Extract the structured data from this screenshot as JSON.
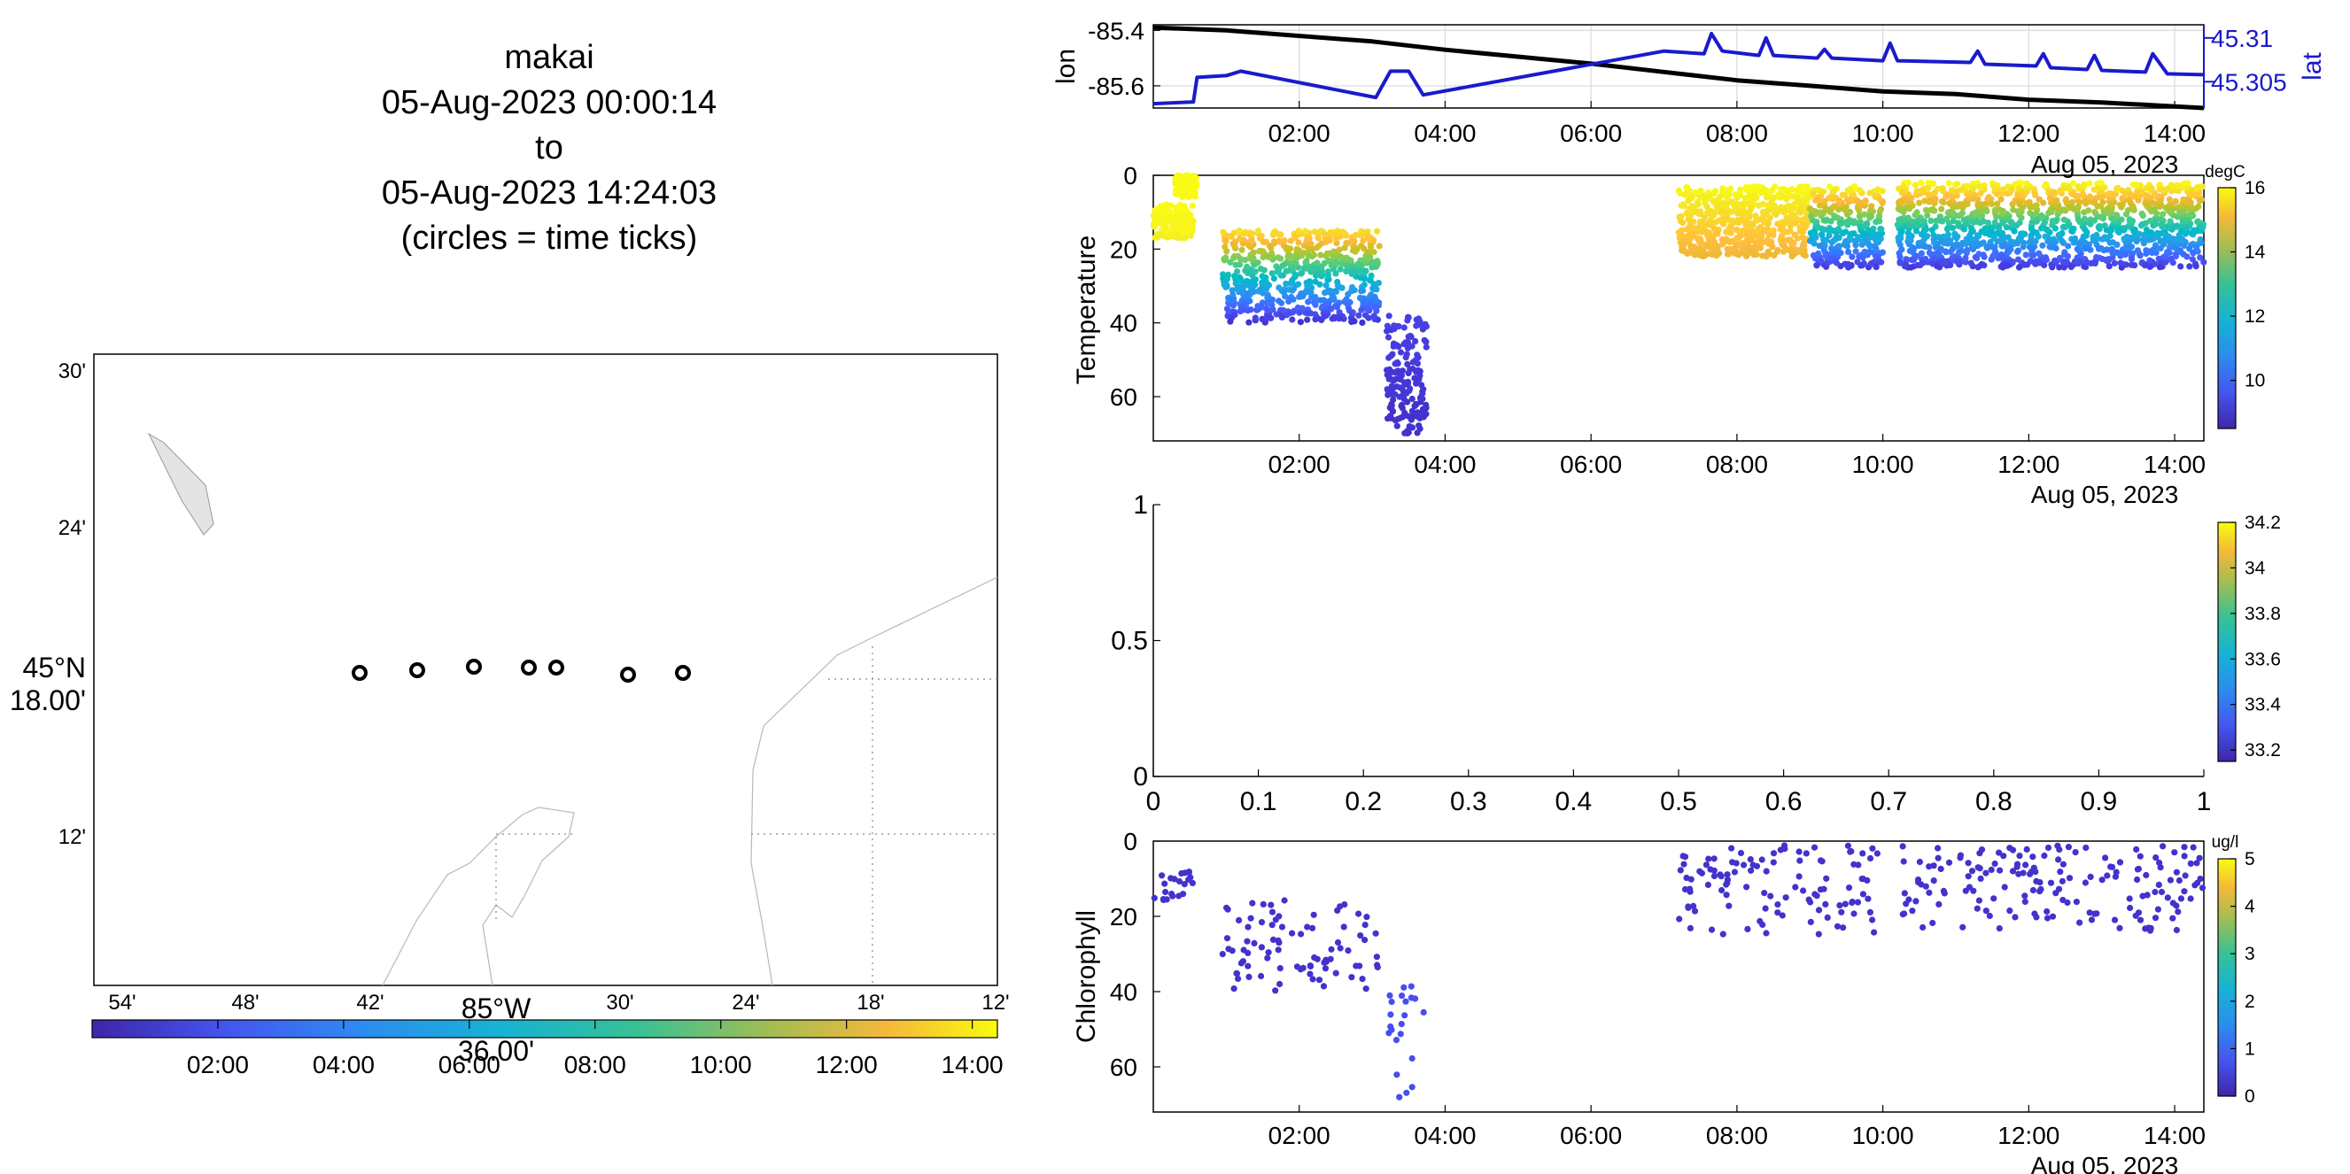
{
  "map": {
    "title_lines": [
      "makai",
      "05-Aug-2023 00:00:14",
      "to",
      "05-Aug-2023 14:24:03",
      "(circles = time ticks)"
    ],
    "lat_ticks": [
      "30'",
      "24'",
      "12'"
    ],
    "lat_center_label": [
      "45°N",
      "18.00'"
    ],
    "lon_ticks": [
      "54'",
      "48'",
      "42'",
      "30'",
      "24'",
      "18'",
      "12'"
    ],
    "lon_center_label": [
      "85°W",
      "36.00'"
    ],
    "time_colorbar_ticks": [
      "02:00",
      "04:00",
      "06:00",
      "08:00",
      "10:00",
      "12:00",
      "14:00"
    ]
  },
  "chart_data": [
    {
      "type": "line",
      "title": "",
      "xlabel": "",
      "ylabel": "lon",
      "y2label": "lat",
      "x_ticks": [
        "02:00",
        "04:00",
        "06:00",
        "08:00",
        "10:00",
        "12:00",
        "14:00"
      ],
      "x_date_label": "Aug 05, 2023",
      "y_ticks": [
        "-85.4",
        "-85.6"
      ],
      "y2_ticks": [
        "45.31",
        "45.305"
      ],
      "xlim": [
        "00:00",
        "14:24"
      ],
      "ylim": [
        -85.68,
        -85.38
      ],
      "y2lim": [
        45.302,
        45.3115
      ],
      "colors": {
        "lon": "#000000",
        "lat": "#1a1acc"
      },
      "series": [
        {
          "name": "lon",
          "x": [
            0.0,
            1.0,
            3.0,
            4.0,
            6.0,
            7.0,
            8.0,
            9.0,
            10.0,
            11.0,
            12.0,
            13.0,
            14.4
          ],
          "y": [
            -85.39,
            -85.4,
            -85.44,
            -85.47,
            -85.52,
            -85.55,
            -85.58,
            -85.6,
            -85.62,
            -85.63,
            -85.65,
            -85.66,
            -85.68
          ]
        },
        {
          "name": "lat",
          "x": [
            0.0,
            0.55,
            0.6,
            1.0,
            1.2,
            3.05,
            3.25,
            3.5,
            3.7,
            7.0,
            7.55,
            7.65,
            7.8,
            8.3,
            8.4,
            8.5,
            9.1,
            9.2,
            9.3,
            10.0,
            10.1,
            10.2,
            11.2,
            11.3,
            11.4,
            12.1,
            12.2,
            12.3,
            12.8,
            12.9,
            13.0,
            13.6,
            13.7,
            13.9,
            14.4
          ],
          "y": [
            45.3025,
            45.3027,
            45.3055,
            45.3057,
            45.3062,
            45.3032,
            45.3062,
            45.3062,
            45.3035,
            45.3085,
            45.3082,
            45.3105,
            45.3085,
            45.308,
            45.31,
            45.308,
            45.3077,
            45.3087,
            45.3077,
            45.3074,
            45.3094,
            45.3074,
            45.3072,
            45.3085,
            45.307,
            45.3068,
            45.3082,
            45.3066,
            45.3064,
            45.308,
            45.3063,
            45.3061,
            45.3082,
            45.3059,
            45.3058
          ]
        }
      ]
    },
    {
      "type": "scatter",
      "title": "",
      "xlabel": "",
      "ylabel": "Temperature",
      "colorbar_label": "degC",
      "colorbar_ticks": [
        "16",
        "14",
        "12",
        "10"
      ],
      "clim": [
        8.5,
        16
      ],
      "x_ticks": [
        "02:00",
        "04:00",
        "06:00",
        "08:00",
        "10:00",
        "12:00",
        "14:00"
      ],
      "x_date_label": "Aug 05, 2023",
      "y_ticks": [
        "0",
        "20",
        "40",
        "60"
      ],
      "ylim": [
        72,
        0
      ],
      "xlim": [
        "00:00",
        "14:24"
      ],
      "profile_segments": [
        {
          "t0": 0.0,
          "t1": 0.55,
          "zmin": 8,
          "zmax": 17,
          "cdeep": 15.8,
          "csurf": 16
        },
        {
          "t0": 0.3,
          "t1": 0.6,
          "zmin": 0,
          "zmax": 6,
          "cdeep": 16,
          "csurf": 16
        },
        {
          "t0": 0.95,
          "t1": 3.1,
          "zmin": 15,
          "zmax": 40,
          "cdeep": 8.8,
          "csurf": 15.5
        },
        {
          "t0": 3.2,
          "t1": 3.75,
          "zmin": 38,
          "zmax": 70,
          "cdeep": 8.8,
          "csurf": 9.2
        },
        {
          "t0": 7.2,
          "t1": 9.0,
          "zmin": 3,
          "zmax": 22,
          "cdeep": 14.5,
          "csurf": 16
        },
        {
          "t0": 9.0,
          "t1": 10.0,
          "zmin": 3,
          "zmax": 25,
          "cdeep": 9.0,
          "csurf": 16
        },
        {
          "t0": 10.2,
          "t1": 14.4,
          "zmin": 2,
          "zmax": 25,
          "cdeep": 9.0,
          "csurf": 16
        }
      ]
    },
    {
      "type": "scatter",
      "title": "",
      "xlabel": "",
      "ylabel": "",
      "x_ticks": [
        "0",
        "0.1",
        "0.2",
        "0.3",
        "0.4",
        "0.5",
        "0.6",
        "0.7",
        "0.8",
        "0.9",
        "1"
      ],
      "y_ticks": [
        "1",
        "0.5",
        "0"
      ],
      "xlim": [
        0,
        1
      ],
      "ylim": [
        0,
        1
      ],
      "colorbar_ticks": [
        "34.2",
        "34",
        "33.8",
        "33.6",
        "33.4",
        "33.2"
      ],
      "clim": [
        33.15,
        34.2
      ],
      "values": []
    },
    {
      "type": "scatter",
      "title": "",
      "xlabel": "",
      "ylabel": "Chlorophyll",
      "colorbar_label": "ug/l",
      "colorbar_ticks": [
        "5",
        "4",
        "3",
        "2",
        "1",
        "0"
      ],
      "clim": [
        0,
        5
      ],
      "x_ticks": [
        "02:00",
        "04:00",
        "06:00",
        "08:00",
        "10:00",
        "12:00",
        "14:00"
      ],
      "x_date_label": "Aug 05, 2023",
      "y_ticks": [
        "0",
        "20",
        "40",
        "60"
      ],
      "ylim": [
        72,
        0
      ],
      "xlim": [
        "00:00",
        "14:24"
      ],
      "profile_segments": [
        {
          "t0": 0.0,
          "t1": 0.55,
          "zmin": 8,
          "zmax": 16,
          "cvalue": 0.2
        },
        {
          "t0": 0.95,
          "t1": 3.1,
          "zmin": 15,
          "zmax": 40,
          "cvalue": 0.2
        },
        {
          "t0": 3.2,
          "t1": 3.75,
          "zmin": 38,
          "zmax": 70,
          "cvalue": 0.6
        },
        {
          "t0": 7.2,
          "t1": 10.0,
          "zmin": 1,
          "zmax": 25,
          "cvalue": 0.2
        },
        {
          "t0": 10.2,
          "t1": 14.4,
          "zmin": 1,
          "zmax": 24,
          "cvalue": 0.2
        }
      ]
    }
  ]
}
